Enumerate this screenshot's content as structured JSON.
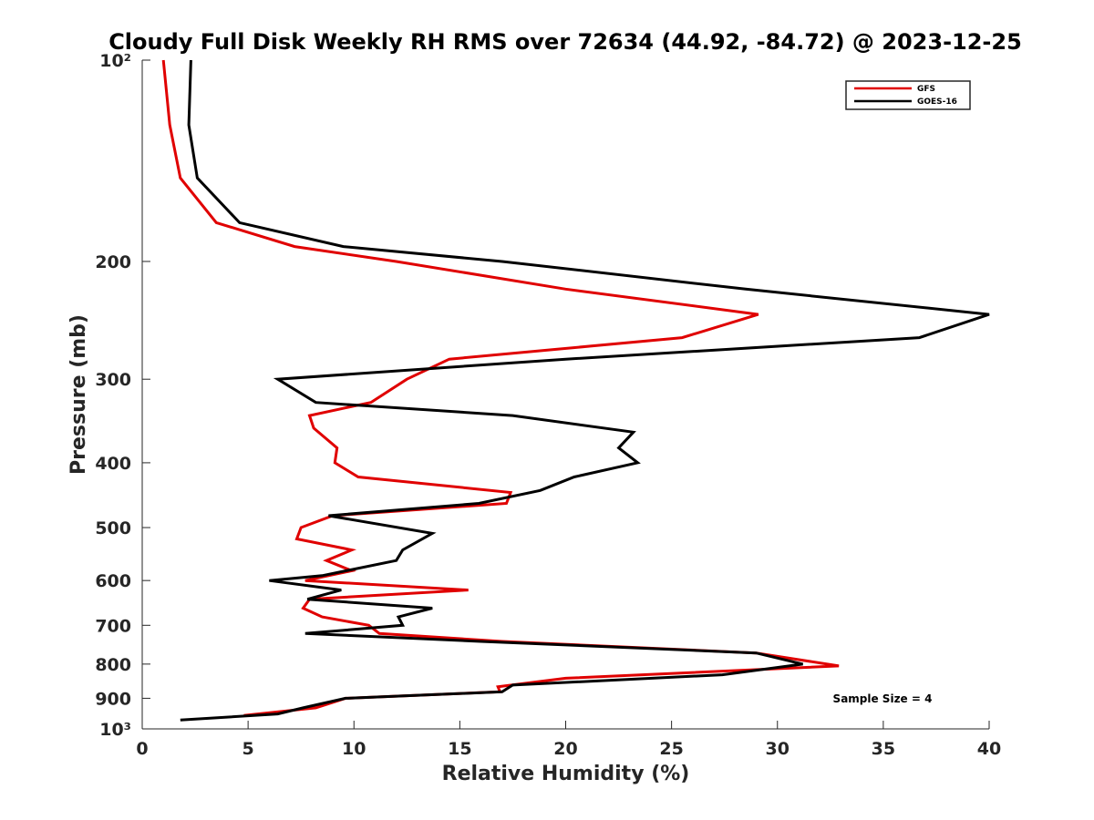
{
  "chart_data": {
    "type": "line",
    "title": "Cloudy Full Disk Weekly RH RMS over 72634 (44.92, -84.72) @ 2023-12-25",
    "xlabel": "Relative Humidity (%)",
    "ylabel": "Pressure (mb)",
    "xlim": [
      0,
      40
    ],
    "ylim": [
      100,
      1000
    ],
    "y_scale": "log",
    "y_reversed": true,
    "x_ticks": [
      0,
      5,
      10,
      15,
      20,
      25,
      30,
      35,
      40
    ],
    "x_tick_labels": [
      "0",
      "5",
      "10",
      "15",
      "20",
      "25",
      "30",
      "35",
      "40"
    ],
    "y_ticks": [
      100,
      200,
      300,
      400,
      500,
      600,
      700,
      800,
      900,
      1000
    ],
    "y_tick_labels": [
      "10²",
      "200",
      "300",
      "400",
      "500",
      "600",
      "700",
      "800",
      "900",
      "10³"
    ],
    "grid": false,
    "legend_position": "top-right",
    "annotation": "Sample Size = 4",
    "series": [
      {
        "name": "GFS",
        "color": "#e00000",
        "points": [
          [
            1.0,
            100
          ],
          [
            1.3,
            125
          ],
          [
            1.8,
            150
          ],
          [
            3.5,
            175
          ],
          [
            7.2,
            190
          ],
          [
            12.0,
            200
          ],
          [
            20.0,
            220
          ],
          [
            29.1,
            240
          ],
          [
            25.5,
            260
          ],
          [
            14.5,
            280
          ],
          [
            12.5,
            300
          ],
          [
            10.8,
            325
          ],
          [
            7.9,
            340
          ],
          [
            8.1,
            355
          ],
          [
            9.2,
            380
          ],
          [
            9.1,
            400
          ],
          [
            10.2,
            420
          ],
          [
            17.4,
            443
          ],
          [
            17.2,
            460
          ],
          [
            9.0,
            480
          ],
          [
            7.5,
            500
          ],
          [
            7.3,
            520
          ],
          [
            9.9,
            540
          ],
          [
            8.7,
            560
          ],
          [
            9.9,
            580
          ],
          [
            7.7,
            600
          ],
          [
            15.4,
            620
          ],
          [
            7.9,
            640
          ],
          [
            7.6,
            660
          ],
          [
            8.5,
            680
          ],
          [
            10.7,
            700
          ],
          [
            11.2,
            720
          ],
          [
            17.0,
            740
          ],
          [
            29.0,
            770
          ],
          [
            32.9,
            805
          ],
          [
            20.0,
            840
          ],
          [
            16.8,
            865
          ],
          [
            16.9,
            880
          ],
          [
            9.6,
            900
          ],
          [
            8.2,
            930
          ],
          [
            4.8,
            955
          ]
        ]
      },
      {
        "name": "GOES-16",
        "color": "#000000",
        "points": [
          [
            2.3,
            100
          ],
          [
            2.2,
            125
          ],
          [
            2.6,
            150
          ],
          [
            4.6,
            175
          ],
          [
            9.5,
            190
          ],
          [
            17.0,
            200
          ],
          [
            28.5,
            220
          ],
          [
            40.0,
            240
          ],
          [
            36.7,
            260
          ],
          [
            20.0,
            280
          ],
          [
            6.4,
            300
          ],
          [
            8.2,
            325
          ],
          [
            17.5,
            340
          ],
          [
            23.2,
            360
          ],
          [
            22.5,
            380
          ],
          [
            23.4,
            400
          ],
          [
            20.4,
            420
          ],
          [
            18.8,
            440
          ],
          [
            15.9,
            460
          ],
          [
            8.8,
            480
          ],
          [
            13.7,
            510
          ],
          [
            12.3,
            540
          ],
          [
            12.0,
            560
          ],
          [
            8.5,
            590
          ],
          [
            6.0,
            600
          ],
          [
            9.4,
            620
          ],
          [
            7.8,
            640
          ],
          [
            13.7,
            660
          ],
          [
            12.1,
            680
          ],
          [
            12.3,
            700
          ],
          [
            7.7,
            720
          ],
          [
            16.0,
            740
          ],
          [
            29.0,
            770
          ],
          [
            31.2,
            800
          ],
          [
            27.4,
            830
          ],
          [
            17.5,
            860
          ],
          [
            17.0,
            880
          ],
          [
            9.6,
            900
          ],
          [
            7.6,
            930
          ],
          [
            6.4,
            950
          ],
          [
            1.8,
            970
          ]
        ]
      }
    ]
  }
}
